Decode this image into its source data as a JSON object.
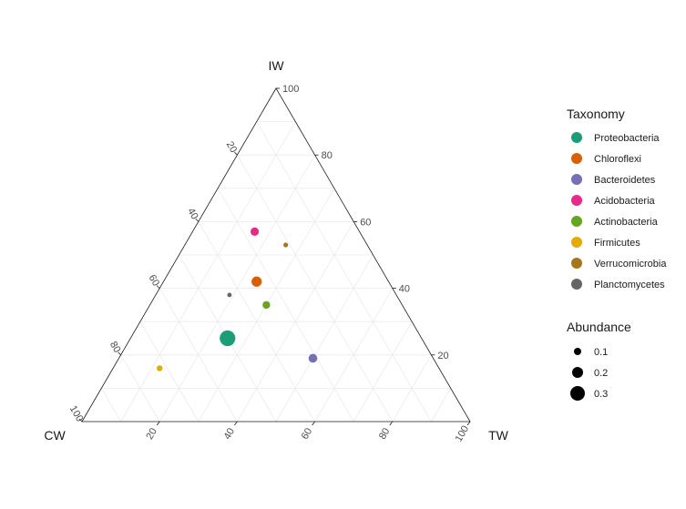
{
  "chart_data": {
    "type": "ternary-scatter",
    "axes": {
      "top": "IW",
      "left": "CW",
      "right": "TW"
    },
    "ticks": [
      20,
      40,
      60,
      80,
      100
    ],
    "limits": [
      0,
      100
    ],
    "grid": true,
    "legend_position": "right",
    "color_legend": {
      "title": "Taxonomy",
      "entries": [
        {
          "name": "Proteobacteria",
          "color": "#1b9e77"
        },
        {
          "name": "Chloroflexi",
          "color": "#d95f02"
        },
        {
          "name": "Bacteroidetes",
          "color": "#7570b3"
        },
        {
          "name": "Acidobacteria",
          "color": "#e7298a"
        },
        {
          "name": "Actinobacteria",
          "color": "#66a61e"
        },
        {
          "name": "Firmicutes",
          "color": "#e6ab02"
        },
        {
          "name": "Verrucomicrobia",
          "color": "#a6761d"
        },
        {
          "name": "Planctomycetes",
          "color": "#666666"
        }
      ]
    },
    "size_legend": {
      "title": "Abundance",
      "entries": [
        {
          "label": "0.1",
          "value": 0.1
        },
        {
          "label": "0.2",
          "value": 0.2
        },
        {
          "label": "0.3",
          "value": 0.3
        }
      ]
    },
    "points": [
      {
        "taxon": "Proteobacteria",
        "IW": 25,
        "CW": 50,
        "TW": 25,
        "abundance": 0.33
      },
      {
        "taxon": "Chloroflexi",
        "IW": 42,
        "CW": 34,
        "TW": 24,
        "abundance": 0.18
      },
      {
        "taxon": "Bacteroidetes",
        "IW": 19,
        "CW": 31,
        "TW": 50,
        "abundance": 0.14
      },
      {
        "taxon": "Acidobacteria",
        "IW": 57,
        "CW": 27,
        "TW": 16,
        "abundance": 0.13
      },
      {
        "taxon": "Actinobacteria",
        "IW": 35,
        "CW": 35,
        "TW": 30,
        "abundance": 0.11
      },
      {
        "taxon": "Firmicutes",
        "IW": 16,
        "CW": 72,
        "TW": 12,
        "abundance": 0.06
      },
      {
        "taxon": "Verrucomicrobia",
        "IW": 53,
        "CW": 21,
        "TW": 26,
        "abundance": 0.03
      },
      {
        "taxon": "Planctomycetes",
        "IW": 38,
        "CW": 43,
        "TW": 19,
        "abundance": 0.02
      }
    ]
  }
}
